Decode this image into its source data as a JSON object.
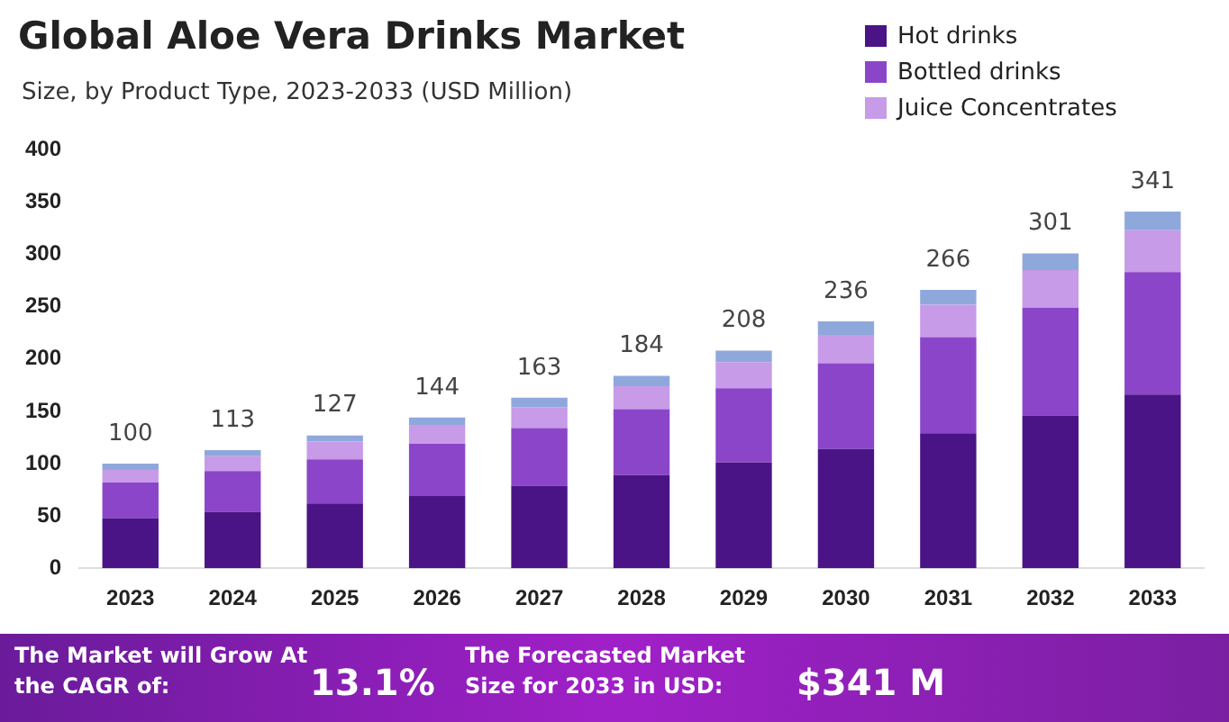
{
  "chart_data": {
    "type": "bar",
    "title": "Global Aloe Vera Drinks Market",
    "subtitle": "Size, by Product Type, 2023-2033 (USD Million)",
    "categories": [
      "2023",
      "2024",
      "2025",
      "2026",
      "2027",
      "2028",
      "2029",
      "2030",
      "2031",
      "2032",
      "2033"
    ],
    "series": [
      {
        "name": "Hot drinks",
        "color": "#4a1486",
        "values": [
          48,
          54,
          62,
          69,
          79,
          89,
          101,
          114,
          129,
          146,
          166
        ]
      },
      {
        "name": "Bottled drinks",
        "color": "#8b45c9",
        "values": [
          34,
          39,
          42,
          50,
          55,
          63,
          71,
          82,
          92,
          103,
          117
        ]
      },
      {
        "name": "Juice Concentrates",
        "color": "#c79be8",
        "values": [
          12,
          14,
          17,
          18,
          20,
          22,
          25,
          27,
          31,
          36,
          40
        ]
      },
      {
        "color": "#8fa8dc",
        "values": [
          6,
          6,
          6,
          7,
          9,
          10,
          11,
          13,
          14,
          16,
          18
        ]
      }
    ],
    "stacked": true,
    "totals": [
      "100",
      "113",
      "127",
      "144",
      "163",
      "184",
      "208",
      "236",
      "266",
      "301",
      "341"
    ],
    "ylim": [
      0,
      400
    ],
    "yticks": [
      0,
      50,
      100,
      150,
      200,
      250,
      300,
      350,
      400
    ],
    "grid": false,
    "legend": "top right",
    "annotations": [
      "The Market will Grow At the CAGR of:",
      "13.1%",
      "The Forecasted Market Size for 2033 in USD:",
      "$341 M"
    ]
  }
}
